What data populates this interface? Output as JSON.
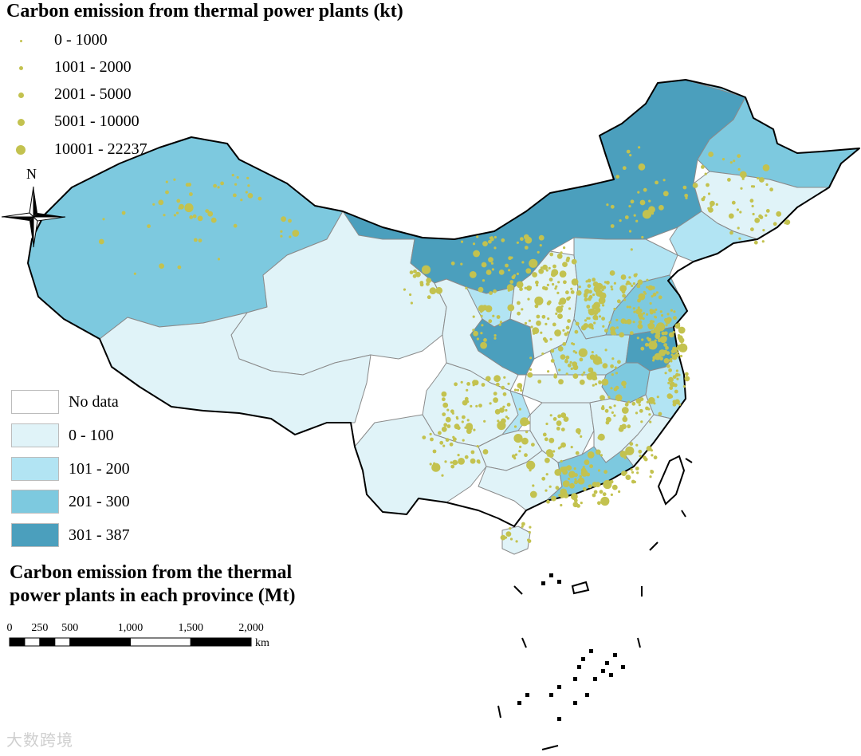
{
  "plants_legend": {
    "title": "Carbon emission from thermal power plants (kt)",
    "dot_color": "#c3c24f",
    "classes": [
      {
        "label": "0 - 1000"
      },
      {
        "label": "1001 - 2000"
      },
      {
        "label": "2001 - 5000"
      },
      {
        "label": "5001 - 10000"
      },
      {
        "label": "10001 - 22237"
      }
    ]
  },
  "province_legend": {
    "title_line1": "Carbon emission from the thermal",
    "title_line2": "power plants in each province (Mt)",
    "classes": [
      {
        "label": "No data",
        "color": "#ffffff"
      },
      {
        "label": "0 - 100",
        "color": "#e0f3f8"
      },
      {
        "label": "101 - 200",
        "color": "#b2e4f3"
      },
      {
        "label": "201 - 300",
        "color": "#7dc9df"
      },
      {
        "label": "301 - 387",
        "color": "#4b9fbd"
      }
    ]
  },
  "north_arrow": {
    "label": "N",
    "icon": "north-arrow-icon"
  },
  "scale_bar": {
    "ticks": [
      "0",
      "250",
      "500",
      "1,000",
      "1,500",
      "2,000"
    ],
    "unit": "km"
  },
  "watermark": "大数跨境"
}
